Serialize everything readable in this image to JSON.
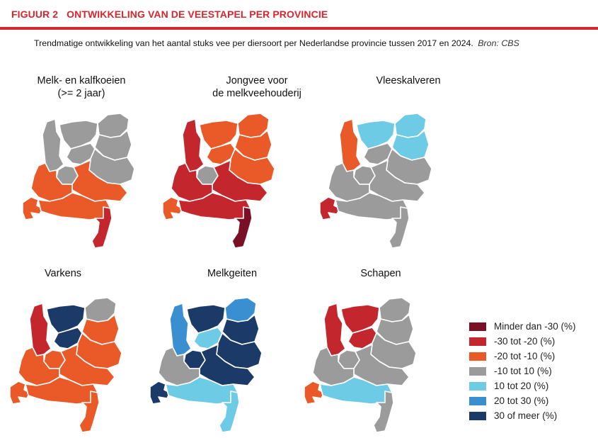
{
  "header": {
    "figure_number": "FIGUUR 2",
    "figure_title": "ONTWIKKELING VAN DE VEESTAPEL PER PROVINCIE",
    "subtitle": "Trendmatige ontwikkeling van het aantal stuks vee per diersoort per Nederlandse provincie tussen 2017 en 2024.",
    "source": "Bron: CBS"
  },
  "colors": {
    "minder_dan_min30": "#7a1026",
    "min30_tot_min20": "#c4262e",
    "min20_tot_min10": "#ea5a28",
    "min10_tot_10": "#9b9b9b",
    "10_tot_20": "#6ecbe5",
    "20_tot_30": "#3a8fd0",
    "30_of_meer": "#1b3a68"
  },
  "legend": [
    {
      "label": "Minder dan -30 (%)",
      "color": "#7a1026"
    },
    {
      "label": "-30 tot -20 (%)",
      "color": "#c4262e"
    },
    {
      "label": "-20 tot -10 (%)",
      "color": "#ea5a28"
    },
    {
      "label": "-10 tot 10 (%)",
      "color": "#9b9b9b"
    },
    {
      "label": "10 tot 20 (%)",
      "color": "#6ecbe5"
    },
    {
      "label": "20 tot 30 (%)",
      "color": "#3a8fd0"
    },
    {
      "label": "30 of meer (%)",
      "color": "#1b3a68"
    }
  ],
  "maps": [
    {
      "title_line1": "Melk- en kalfkoeien",
      "title_line2": "(>= 2 jaar)",
      "provinces": {
        "groningen": "#9b9b9b",
        "friesland": "#9b9b9b",
        "drenthe": "#9b9b9b",
        "overijssel": "#9b9b9b",
        "flevoland": "#9b9b9b",
        "gelderland": "#ea5a28",
        "utrecht": "#9b9b9b",
        "noord_holland": "#9b9b9b",
        "zuid_holland": "#ea5a28",
        "zeeland": "#ea5a28",
        "noord_brabant": "#ea5a28",
        "limburg": "#c4262e"
      }
    },
    {
      "title_line1": "Jongvee voor",
      "title_line2": "de melkveehouderij",
      "provinces": {
        "groningen": "#ea5a28",
        "friesland": "#ea5a28",
        "drenthe": "#ea5a28",
        "overijssel": "#ea5a28",
        "flevoland": "#ea5a28",
        "gelderland": "#c4262e",
        "utrecht": "#9b9b9b",
        "noord_holland": "#c4262e",
        "zuid_holland": "#c4262e",
        "zeeland": "#ea5a28",
        "noord_brabant": "#c4262e",
        "limburg": "#7a1026"
      }
    },
    {
      "title_line1": "Vleeskalveren",
      "title_line2": "",
      "provinces": {
        "groningen": "#6ecbe5",
        "friesland": "#6ecbe5",
        "drenthe": "#6ecbe5",
        "overijssel": "#9b9b9b",
        "flevoland": "#9b9b9b",
        "gelderland": "#9b9b9b",
        "utrecht": "#9b9b9b",
        "noord_holland": "#ea5a28",
        "zuid_holland": "#9b9b9b",
        "zeeland": "#c4262e",
        "noord_brabant": "#9b9b9b",
        "limburg": "#9b9b9b"
      }
    },
    {
      "title_line1": "Varkens",
      "title_line2": "",
      "provinces": {
        "groningen": "#9b9b9b",
        "friesland": "#1b3a68",
        "drenthe": "#ea5a28",
        "overijssel": "#ea5a28",
        "flevoland": "#1b3a68",
        "gelderland": "#ea5a28",
        "utrecht": "#ea5a28",
        "noord_holland": "#c4262e",
        "zuid_holland": "#ea5a28",
        "zeeland": "#ea5a28",
        "noord_brabant": "#ea5a28",
        "limburg": "#ea5a28"
      }
    },
    {
      "title_line1": "Melkgeiten",
      "title_line2": "",
      "provinces": {
        "groningen": "#3a8fd0",
        "friesland": "#1b3a68",
        "drenthe": "#1b3a68",
        "overijssel": "#1b3a68",
        "flevoland": "#6ecbe5",
        "gelderland": "#1b3a68",
        "utrecht": "#1b3a68",
        "noord_holland": "#3a8fd0",
        "zuid_holland": "#9b9b9b",
        "zeeland": "#1b3a68",
        "noord_brabant": "#6ecbe5",
        "limburg": "#6ecbe5"
      }
    },
    {
      "title_line1": "Schapen",
      "title_line2": "",
      "provinces": {
        "groningen": "#9b9b9b",
        "friesland": "#c4262e",
        "drenthe": "#9b9b9b",
        "overijssel": "#9b9b9b",
        "flevoland": "#c4262e",
        "gelderland": "#9b9b9b",
        "utrecht": "#9b9b9b",
        "noord_holland": "#c4262e",
        "zuid_holland": "#9b9b9b",
        "zeeland": "#ea5a28",
        "noord_brabant": "#6ecbe5",
        "limburg": "#9b9b9b"
      }
    }
  ]
}
